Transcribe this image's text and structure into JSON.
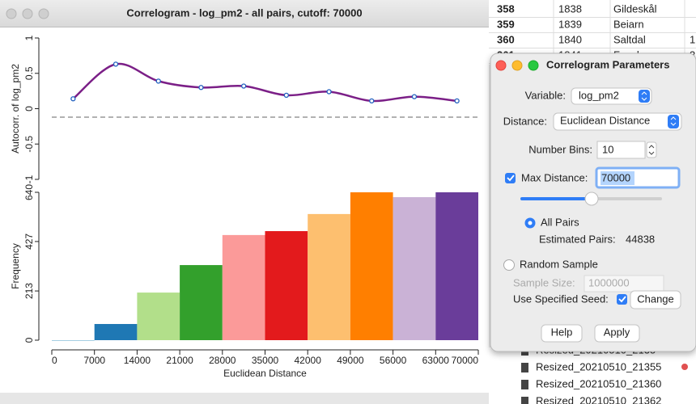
{
  "window": {
    "title": "Correlogram - log_pm2 - all pairs, cutoff: 70000"
  },
  "chart_data": [
    {
      "type": "line",
      "ylabel": "Autocorr. of log_pm2",
      "x": [
        3500,
        10500,
        17500,
        24500,
        31500,
        38500,
        45500,
        52500,
        59500,
        66500
      ],
      "values": [
        0.14,
        0.63,
        0.39,
        0.3,
        0.32,
        0.19,
        0.24,
        0.11,
        0.17,
        0.11
      ],
      "marker_color": "#1f5fbf",
      "line_color": "#7b1f87",
      "xlim": [
        0,
        70000
      ],
      "ylim": [
        -1,
        1
      ],
      "yticks": [
        -1,
        -0.5,
        0,
        0.5,
        1
      ],
      "ref_line": -0.12
    },
    {
      "type": "histogram",
      "xlabel": "Euclidean Distance",
      "ylabel": "Frequency",
      "bins": [
        0,
        7000,
        14000,
        21000,
        28000,
        35000,
        42000,
        49000,
        56000,
        63000,
        70000
      ],
      "values": [
        0,
        70,
        206,
        325,
        455,
        472,
        546,
        640,
        619,
        640
      ],
      "colors": [
        "#a6cee3",
        "#1f78b4",
        "#b2df8a",
        "#33a02c",
        "#fb9a99",
        "#e31a1c",
        "#fdbf6f",
        "#ff7f00",
        "#cab2d6",
        "#6a3d9a"
      ],
      "xlim": [
        0,
        70000
      ],
      "xticks": [
        0,
        7000,
        14000,
        21000,
        28000,
        35000,
        42000,
        49000,
        56000,
        63000,
        70000
      ],
      "ylim": [
        0,
        640
      ],
      "yticks": [
        0,
        213,
        427,
        640
      ]
    }
  ],
  "dialog": {
    "title": "Correlogram Parameters",
    "variable_label": "Variable:",
    "variable": "log_pm2",
    "distance_label": "Distance:",
    "distance": "Euclidean Distance",
    "bins_label": "Number Bins:",
    "bins": "10",
    "max_distance_label": "Max Distance:",
    "max_distance": "70000",
    "all_pairs": "All Pairs",
    "estimated_label": "Estimated Pairs:",
    "estimated": "44838",
    "random_sample": "Random Sample",
    "sample_size_label": "Sample Size:",
    "sample_size": "1000000",
    "seed_label": "Use Specified Seed:",
    "change": "Change",
    "help": "Help",
    "apply": "Apply"
  },
  "background": {
    "table": {
      "rows": [
        [
          "358",
          "1838",
          "Gildeskål"
        ],
        [
          "359",
          "1839",
          "Beiarn"
        ],
        [
          "360",
          "1840",
          "Saltdal",
          "1"
        ],
        [
          "361",
          "1841",
          "Fauske",
          "3"
        ]
      ]
    },
    "files": [
      "Resized_20210510_2135",
      "Resized_20210510_21355",
      "Resized_20210510_21360",
      "Resized_20210510_21362"
    ]
  }
}
